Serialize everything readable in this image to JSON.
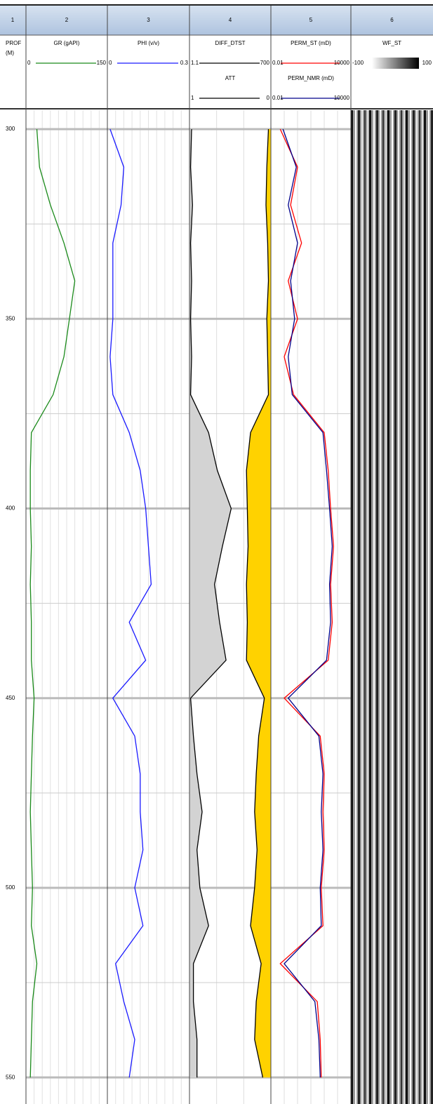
{
  "chart_data": {
    "type": "well_log",
    "ylim": [
      295,
      557
    ],
    "yticks": [
      300,
      350,
      400,
      450,
      500,
      550
    ],
    "minor_yticks": [
      325,
      375,
      425,
      475,
      525
    ],
    "depth": [
      300,
      310,
      320,
      330,
      340,
      350,
      360,
      370,
      380,
      390,
      400,
      410,
      420,
      430,
      440,
      450,
      460,
      470,
      480,
      490,
      500,
      510,
      520,
      530,
      540,
      550
    ],
    "depth_track": {
      "number": "1",
      "title": "PROF",
      "unit": "(M)"
    },
    "tracks": [
      {
        "number": "2",
        "curves": [
          {
            "name": "GR (gAPI)",
            "color": "#1a8a1a",
            "scale": "linear",
            "xlim": [
              0,
              150
            ],
            "values": [
              20,
              25,
              45,
              70,
              90,
              80,
              70,
              50,
              10,
              8,
              8,
              10,
              8,
              10,
              10,
              15,
              12,
              10,
              8,
              10,
              12,
              10,
              20,
              12,
              10,
              8
            ]
          }
        ]
      },
      {
        "number": "3",
        "curves": [
          {
            "name": "PHI (v/v)",
            "color": "#1a1aff",
            "scale": "linear",
            "xlim": [
              0,
              0.3
            ],
            "values": [
              0.01,
              0.06,
              0.05,
              0.02,
              0.02,
              0.02,
              0.01,
              0.02,
              0.08,
              0.12,
              0.14,
              0.15,
              0.16,
              0.08,
              0.14,
              0.02,
              0.1,
              0.12,
              0.12,
              0.13,
              0.1,
              0.13,
              0.03,
              0.06,
              0.1,
              0.08
            ]
          }
        ]
      },
      {
        "number": "4",
        "curves": [
          {
            "name": "DIFF_DTST",
            "color": "#000000",
            "scale": "log",
            "xlim": [
              1.1,
              700
            ],
            "fill": {
              "side": "left",
              "color": "#d3d3d3"
            },
            "values": [
              1.3,
              1.2,
              1.4,
              1.2,
              1.3,
              1.2,
              1.3,
              1.2,
              5,
              10,
              30,
              15,
              8,
              12,
              20,
              1.2,
              1.5,
              2,
              3,
              2,
              2.5,
              5,
              1.5,
              1.5,
              2,
              2
            ]
          },
          {
            "name": "ATT",
            "color": "#000000",
            "scale": "linear",
            "xlim": [
              1,
              0
            ],
            "fill": {
              "side": "right",
              "color": "#ffd200"
            },
            "values": [
              0.03,
              0.05,
              0.06,
              0.04,
              0.03,
              0.05,
              0.04,
              0.03,
              0.25,
              0.3,
              0.29,
              0.28,
              0.3,
              0.29,
              0.3,
              0.08,
              0.15,
              0.18,
              0.2,
              0.17,
              0.2,
              0.25,
              0.12,
              0.18,
              0.2,
              0.1
            ]
          }
        ]
      },
      {
        "number": "5",
        "curves": [
          {
            "name": "PERM_ST (mD)",
            "color": "#ff0000",
            "scale": "log",
            "xlim": [
              0.01,
              10000
            ],
            "values": [
              0.05,
              1,
              0.3,
              2,
              0.2,
              1,
              0.1,
              0.5,
              100,
              200,
              300,
              500,
              300,
              400,
              200,
              0.1,
              50,
              100,
              80,
              100,
              60,
              80,
              0.05,
              30,
              50,
              60
            ]
          },
          {
            "name": "PERM_NMR (mD)",
            "color": "#00008b",
            "scale": "log",
            "xlim": [
              0.01,
              10000
            ],
            "values": [
              0.08,
              0.8,
              0.2,
              1,
              0.3,
              0.6,
              0.2,
              0.4,
              80,
              150,
              250,
              400,
              250,
              300,
              150,
              0.2,
              40,
              80,
              60,
              80,
              50,
              60,
              0.1,
              20,
              40,
              50
            ]
          }
        ]
      },
      {
        "number": "6",
        "curves": [
          {
            "name": "WF_ST",
            "scale": "linear",
            "xlim": [
              -100,
              100
            ]
          }
        ]
      }
    ]
  }
}
